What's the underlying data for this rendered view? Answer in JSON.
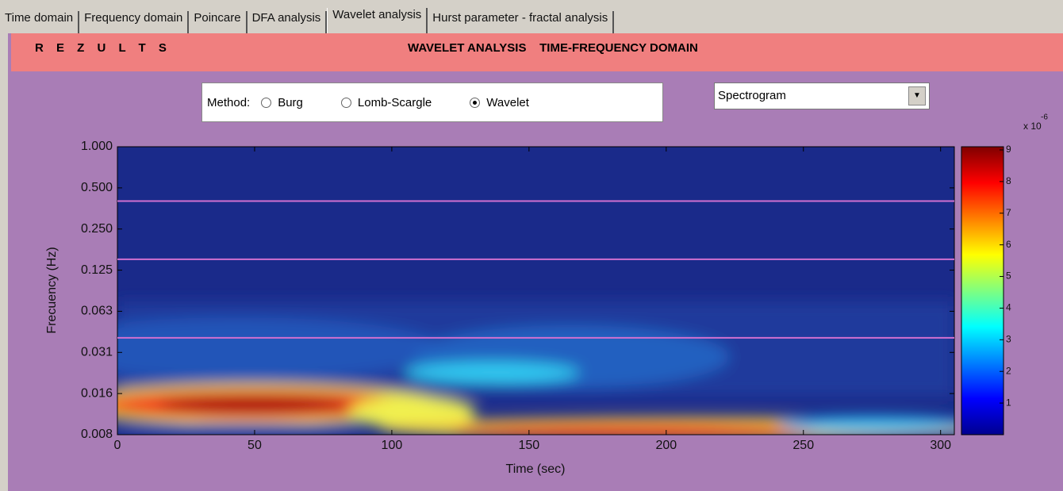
{
  "tabs": [
    "Time domain",
    "Frequency domain",
    "Poincare",
    "DFA analysis",
    "Wavelet analysis",
    "Hurst parameter - fractal analysis"
  ],
  "active_tab": 4,
  "header": {
    "title": "R E Z U L T S",
    "subtitle": "WAVELET ANALYSIS    TIME-FREQUENCY DOMAIN"
  },
  "method": {
    "label": "Method:",
    "options": [
      "Burg",
      "Lomb-Scargle",
      "Wavelet"
    ],
    "selected": 2
  },
  "dropdown": {
    "value": "Spectrogram"
  },
  "chart_data": {
    "type": "heatmap",
    "x_label": "Time (sec)",
    "y_label": "Frecuency (Hz)",
    "xlim": [
      0,
      305
    ],
    "xticks": [
      0,
      50,
      100,
      150,
      200,
      250,
      300
    ],
    "ylim": [
      0.0078125,
      1
    ],
    "log_scale_y": true,
    "yticks": [
      {
        "value": 1,
        "label": "1.000"
      },
      {
        "value": 0.5,
        "label": "0.500"
      },
      {
        "value": 0.25,
        "label": "0.250"
      },
      {
        "value": 0.125,
        "label": "0.125"
      },
      {
        "value": 0.0625,
        "label": "0.063"
      },
      {
        "value": 0.03125,
        "label": "0.031"
      },
      {
        "value": 0.015625,
        "label": "0.016"
      },
      {
        "value": 0.0078125,
        "label": "0.008"
      }
    ],
    "band_lines": [
      0.04,
      0.15,
      0.4
    ],
    "band_line_color": "#d070d0",
    "colorbar": {
      "clim": [
        0,
        9.1
      ],
      "ticks": [
        1,
        2,
        3,
        4,
        5,
        6,
        7,
        8,
        9
      ],
      "multiplier": "x 10",
      "exponent": "-6"
    }
  }
}
